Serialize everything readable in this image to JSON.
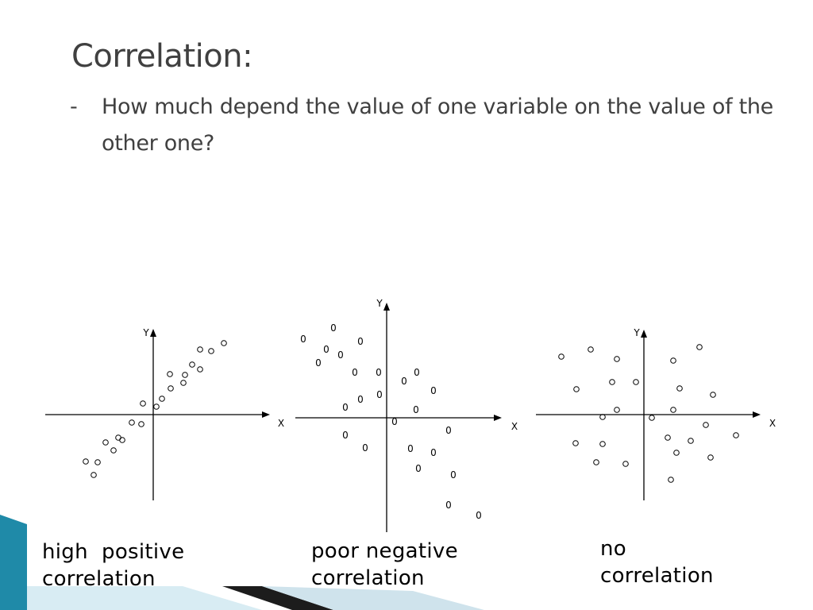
{
  "slide": {
    "title": "Correlation:",
    "bullet_marker": "-",
    "bullet_text": "How much depend the value of one variable on the value of the other one?"
  },
  "diagrams": [
    {
      "id": "high-positive",
      "axis_x_label": "X",
      "axis_y_label": "Y",
      "point_glyph": "o",
      "caption_lines": [
        "high  positive",
        "correlation"
      ]
    },
    {
      "id": "poor-negative",
      "axis_x_label": "X",
      "axis_y_label": "Y",
      "point_glyph": "0",
      "caption_lines": [
        "poor negative",
        "correlation"
      ]
    },
    {
      "id": "no-correlation",
      "axis_x_label": "X",
      "axis_y_label": "Y",
      "point_glyph": "o",
      "caption_lines": [
        "no",
        "correlation"
      ]
    }
  ],
  "theme": {
    "title_color": "#404040",
    "accent_teal": "#1f8aa8",
    "accent_light": "#cfe6ef"
  }
}
